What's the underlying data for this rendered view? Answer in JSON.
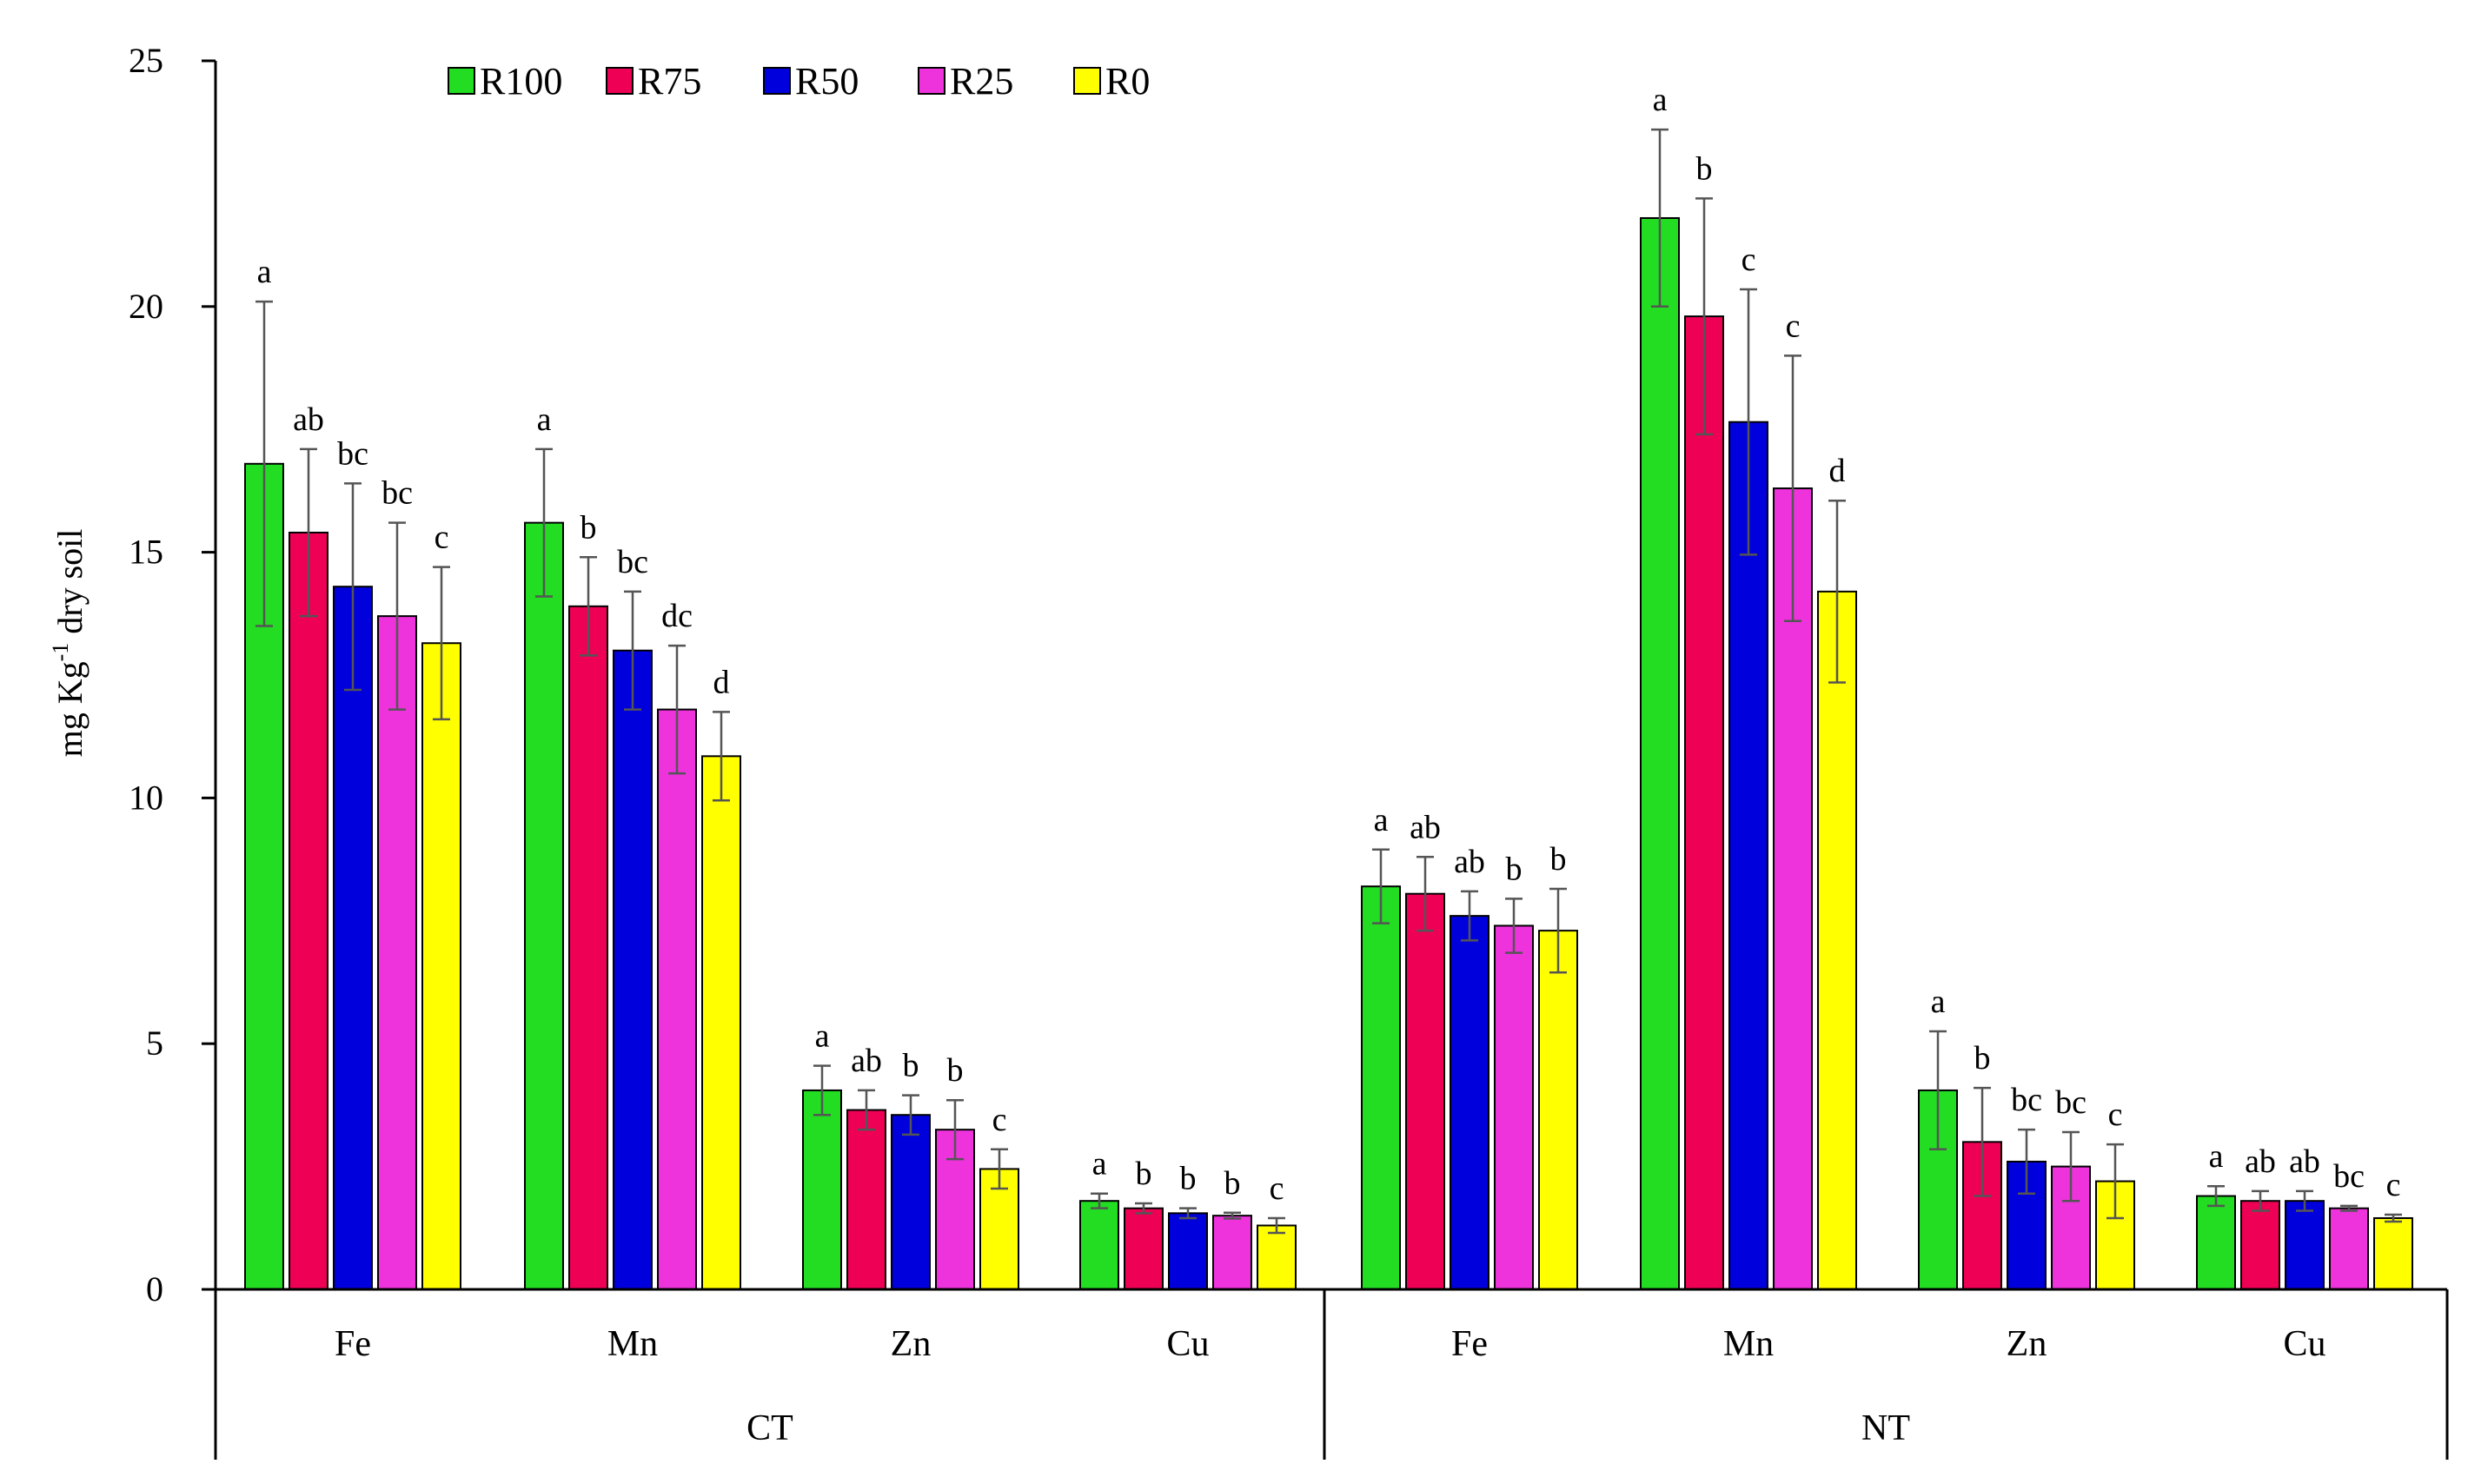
{
  "chart_data": {
    "type": "bar",
    "title": "",
    "ylabel_main": "mg Kg",
    "ylabel_sup": "-1",
    "ylabel_tail": " dry soil",
    "xlabel": "",
    "ylim": [
      0,
      25
    ],
    "yticks": [
      0,
      5,
      10,
      15,
      20,
      25
    ],
    "legend_position": "top-left",
    "groups": [
      {
        "name": "CT",
        "categories": [
          "Fe",
          "Mn",
          "Zn",
          "Cu"
        ]
      },
      {
        "name": "NT",
        "categories": [
          "Fe",
          "Mn",
          "Zn",
          "Cu"
        ]
      }
    ],
    "series": [
      {
        "name": "R100",
        "color": "#22DD22",
        "values": [
          16.8,
          15.6,
          4.05,
          1.8,
          8.2,
          21.8,
          4.05,
          1.9
        ],
        "errors": [
          3.3,
          1.5,
          0.5,
          0.15,
          0.75,
          1.8,
          1.2,
          0.2
        ],
        "letters": [
          "a",
          "a",
          "a",
          "a",
          "a",
          "a",
          "a",
          "a"
        ]
      },
      {
        "name": "R75",
        "color": "#EE0055",
        "values": [
          15.4,
          13.9,
          3.65,
          1.65,
          8.05,
          19.8,
          3.0,
          1.8
        ],
        "errors": [
          1.7,
          1.0,
          0.4,
          0.1,
          0.75,
          2.4,
          1.1,
          0.2
        ],
        "letters": [
          "ab",
          "b",
          "ab",
          "b",
          "ab",
          "b",
          "b",
          "ab"
        ]
      },
      {
        "name": "R50",
        "color": "#0000DD",
        "values": [
          14.3,
          13.0,
          3.55,
          1.55,
          7.6,
          17.65,
          2.6,
          1.8
        ],
        "errors": [
          2.1,
          1.2,
          0.4,
          0.1,
          0.5,
          2.7,
          0.65,
          0.2
        ],
        "letters": [
          "bc",
          "bc",
          "b",
          "b",
          "ab",
          "c",
          "bc",
          "ab"
        ]
      },
      {
        "name": "R25",
        "color": "#EE33DD",
        "values": [
          13.7,
          11.8,
          3.25,
          1.5,
          7.4,
          16.3,
          2.5,
          1.65
        ],
        "errors": [
          1.9,
          1.3,
          0.6,
          0.06,
          0.55,
          2.7,
          0.7,
          0.05
        ],
        "letters": [
          "bc",
          "dc",
          "b",
          "b",
          "b",
          "c",
          "bc",
          "bc"
        ]
      },
      {
        "name": "R0",
        "color": "#FFFF00",
        "values": [
          13.15,
          10.85,
          2.45,
          1.3,
          7.3,
          14.2,
          2.2,
          1.45
        ],
        "errors": [
          1.55,
          0.9,
          0.4,
          0.15,
          0.85,
          1.85,
          0.75,
          0.07
        ],
        "letters": [
          "c",
          "d",
          "c",
          "c",
          "b",
          "d",
          "c",
          "c"
        ]
      }
    ]
  }
}
